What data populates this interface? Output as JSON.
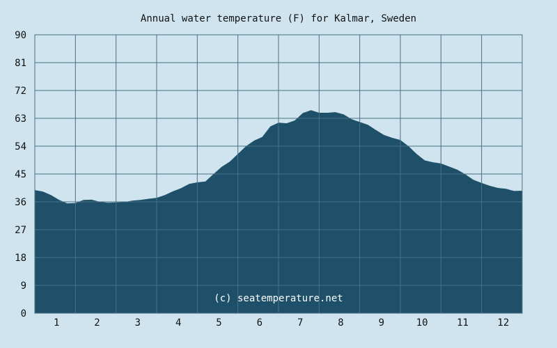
{
  "chart_data": {
    "type": "area",
    "title": "Annual water temperature (F) for Kalmar, Sweden",
    "xlabel": "",
    "ylabel": "",
    "ylim": [
      0,
      90
    ],
    "xlim": [
      0.5,
      12.5
    ],
    "yticks": [
      "0",
      "9",
      "18",
      "27",
      "36",
      "45",
      "54",
      "63",
      "72",
      "81",
      "90"
    ],
    "xticks": [
      "1",
      "2",
      "3",
      "4",
      "5",
      "6",
      "7",
      "8",
      "9",
      "10",
      "11",
      "12"
    ],
    "grid": true,
    "series": [
      {
        "x": [
          0.5,
          0.7,
          0.9,
          1.1,
          1.3,
          1.5,
          1.7,
          1.9,
          2.1,
          2.3,
          2.5,
          2.7,
          2.9,
          3.1,
          3.3,
          3.5,
          3.7,
          3.9,
          4.1,
          4.3,
          4.5,
          4.7,
          4.9,
          5.1,
          5.3,
          5.5,
          5.7,
          5.9,
          6.1,
          6.3,
          6.5,
          6.7,
          6.9,
          7.1,
          7.3,
          7.5,
          7.7,
          7.9,
          8.1,
          8.3,
          8.5,
          8.7,
          8.9,
          9.1,
          9.3,
          9.5,
          9.7,
          9.9,
          10.1,
          10.3,
          10.5,
          10.7,
          10.9,
          11.1,
          11.3,
          11.5,
          11.7,
          11.9,
          12.1,
          12.3,
          12.5
        ],
        "y": [
          39.8,
          39.3,
          38.2,
          36.6,
          35.5,
          35.6,
          36.6,
          36.7,
          36.0,
          35.7,
          35.8,
          35.9,
          36.4,
          36.6,
          37.0,
          37.3,
          38.2,
          39.4,
          40.4,
          41.8,
          42.3,
          42.6,
          45.0,
          47.3,
          49.0,
          51.5,
          54.0,
          55.8,
          57.0,
          60.4,
          61.6,
          61.4,
          62.3,
          64.7,
          65.6,
          64.8,
          64.8,
          65.0,
          64.3,
          62.7,
          61.8,
          60.9,
          59.2,
          57.6,
          56.7,
          56.0,
          54.0,
          51.5,
          49.4,
          48.8,
          48.4,
          47.4,
          46.4,
          44.9,
          43.1,
          42.1,
          41.2,
          40.5,
          40.2,
          39.5,
          39.6
        ]
      }
    ],
    "colors": {
      "fill": "#1f5069",
      "background": "#cfe4ee",
      "plot_background": "#cfe4ee",
      "grid": "#4b6f85"
    },
    "annotation": "(c) seatemperature.net"
  }
}
